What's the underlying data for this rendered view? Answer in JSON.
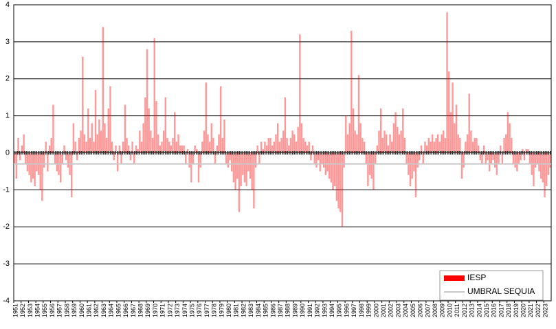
{
  "chart_data": {
    "type": "bar",
    "series": [
      {
        "name": "IESP",
        "color": "#ff0000",
        "x": [
          1951,
          1951.25,
          1951.5,
          1951.75,
          1952,
          1952.25,
          1952.5,
          1952.75,
          1953,
          1953.25,
          1953.5,
          1953.75,
          1954,
          1954.25,
          1954.5,
          1954.75,
          1955,
          1955.25,
          1955.5,
          1955.75,
          1956,
          1956.25,
          1956.5,
          1956.75,
          1957,
          1957.25,
          1957.5,
          1957.75,
          1958,
          1958.25,
          1958.5,
          1958.75,
          1959,
          1959.25,
          1959.5,
          1959.75,
          1960,
          1960.25,
          1960.5,
          1960.75,
          1961,
          1961.25,
          1961.5,
          1961.75,
          1962,
          1962.25,
          1962.5,
          1962.75,
          1963,
          1963.25,
          1963.5,
          1963.75,
          1964,
          1964.25,
          1964.5,
          1964.75,
          1965,
          1965.25,
          1965.5,
          1965.75,
          1966,
          1966.25,
          1966.5,
          1966.75,
          1967,
          1967.25,
          1967.5,
          1967.75,
          1968,
          1968.25,
          1968.5,
          1968.75,
          1969,
          1969.25,
          1969.5,
          1969.75,
          1970,
          1970.25,
          1970.5,
          1970.75,
          1971,
          1971.25,
          1971.5,
          1971.75,
          1972,
          1972.25,
          1972.5,
          1972.75,
          1973,
          1973.25,
          1973.5,
          1973.75,
          1974,
          1974.25,
          1974.5,
          1974.75,
          1975,
          1975.25,
          1975.5,
          1975.75,
          1976,
          1976.25,
          1976.5,
          1976.75,
          1977,
          1977.25,
          1977.5,
          1977.75,
          1978,
          1978.25,
          1978.5,
          1978.75,
          1979,
          1979.25,
          1979.5,
          1979.75,
          1980,
          1980.25,
          1980.5,
          1980.75,
          1981,
          1981.25,
          1981.5,
          1981.75,
          1982,
          1982.25,
          1982.5,
          1982.75,
          1983,
          1983.25,
          1983.5,
          1983.75,
          1984,
          1984.25,
          1984.5,
          1984.75,
          1985,
          1985.25,
          1985.5,
          1985.75,
          1986,
          1986.25,
          1986.5,
          1986.75,
          1987,
          1987.25,
          1987.5,
          1987.75,
          1988,
          1988.25,
          1988.5,
          1988.75,
          1989,
          1989.25,
          1989.5,
          1989.75,
          1990,
          1990.25,
          1990.5,
          1990.75,
          1991,
          1991.25,
          1991.5,
          1991.75,
          1992,
          1992.25,
          1992.5,
          1992.75,
          1993,
          1993.25,
          1993.5,
          1993.75,
          1994,
          1994.25,
          1994.5,
          1994.75,
          1995,
          1995.25,
          1995.5,
          1995.75,
          1996,
          1996.25,
          1996.5,
          1996.75,
          1997,
          1997.25,
          1997.5,
          1997.75,
          1998,
          1998.25,
          1998.5,
          1998.75,
          1999,
          1999.25,
          1999.5,
          1999.75,
          2000,
          2000.25,
          2000.5,
          2000.75,
          2001,
          2001.25,
          2001.5,
          2001.75,
          2002,
          2002.25,
          2002.5,
          2002.75,
          2003,
          2003.25,
          2003.5,
          2003.75,
          2004,
          2004.25,
          2004.5,
          2004.75,
          2005,
          2005.25,
          2005.5,
          2005.75,
          2006,
          2006.25,
          2006.5,
          2006.75,
          2007,
          2007.25,
          2007.5,
          2007.75,
          2008,
          2008.25,
          2008.5,
          2008.75,
          2009,
          2009.25,
          2009.5,
          2009.75,
          2010,
          2010.25,
          2010.5,
          2010.75,
          2011,
          2011.25,
          2011.5,
          2011.75,
          2012,
          2012.25,
          2012.5,
          2012.75,
          2013,
          2013.25,
          2013.5,
          2013.75,
          2014,
          2014.25,
          2014.5,
          2014.75,
          2015,
          2015.25,
          2015.5,
          2015.75,
          2016,
          2016.25,
          2016.5,
          2016.75,
          2017,
          2017.25,
          2017.5,
          2017.75,
          2018,
          2018.25,
          2018.5,
          2018.75,
          2019,
          2019.25,
          2019.5,
          2019.75,
          2020,
          2020.25,
          2020.5,
          2020.75,
          2021,
          2021.25,
          2021.5,
          2021.75,
          2022,
          2022.25,
          2022.5,
          2022.75,
          2023,
          2023.25,
          2023.5,
          2023.75
        ],
        "values": [
          -0.3,
          -0.7,
          0.4,
          -0.2,
          0.2,
          0.5,
          -0.3,
          -0.5,
          -0.6,
          -0.8,
          -0.7,
          -0.9,
          -0.5,
          -0.6,
          -1.0,
          -1.3,
          -0.4,
          0.3,
          -0.5,
          0.2,
          0.4,
          1.3,
          -0.3,
          -0.5,
          -0.6,
          -0.8,
          -0.3,
          0.2,
          -0.2,
          -0.4,
          -0.6,
          -1.2,
          0.8,
          0.3,
          -0.2,
          0.4,
          0.6,
          2.6,
          0.5,
          0.3,
          1.2,
          0.4,
          0.8,
          0.3,
          1.7,
          0.5,
          0.9,
          0.6,
          3.4,
          0.8,
          0.4,
          1.2,
          1.8,
          0.3,
          -0.2,
          0.2,
          -0.5,
          0.2,
          -0.3,
          0.3,
          1.3,
          0.4,
          0.2,
          -0.2,
          0.3,
          -0.3,
          0.2,
          0.1,
          0.6,
          0.3,
          0.8,
          1.5,
          2.8,
          1.2,
          0.6,
          0.4,
          3.1,
          1.4,
          0.5,
          0.2,
          0.3,
          0.6,
          1.5,
          0.4,
          0.3,
          0.2,
          0.4,
          1.1,
          0.3,
          0.5,
          0.2,
          0.2,
          0.2,
          -0.3,
          0.1,
          -0.4,
          -0.8,
          -0.3,
          0.2,
          0.1,
          -0.8,
          -0.4,
          0.3,
          0.6,
          1.9,
          0.5,
          0.3,
          0.8,
          0.4,
          -0.3,
          0.2,
          0.5,
          1.8,
          0.4,
          0.9,
          -0.3,
          -0.4,
          -0.2,
          -0.5,
          -0.8,
          -1.0,
          -0.7,
          -1.6,
          -0.9,
          -0.6,
          -0.8,
          -0.9,
          -0.5,
          -0.7,
          -1.0,
          -1.5,
          -0.4,
          0.2,
          -0.3,
          0.3,
          0.1,
          0.3,
          0.2,
          0.4,
          0.4,
          0.2,
          0.3,
          0.5,
          0.8,
          0.3,
          0.4,
          0.6,
          1.5,
          0.4,
          0.2,
          0.4,
          0.6,
          0.5,
          0.3,
          0.7,
          3.2,
          0.8,
          0.4,
          0.3,
          0.2,
          0.3,
          -0.2,
          0.2,
          -0.3,
          -0.4,
          -0.2,
          -0.5,
          -0.3,
          -0.4,
          -0.6,
          -0.5,
          -0.7,
          -0.8,
          -1.0,
          -0.9,
          -1.3,
          -1.5,
          -1.6,
          -2.0,
          -0.4,
          1.0,
          0.5,
          0.8,
          3.3,
          1.2,
          0.6,
          0.5,
          2.1,
          0.8,
          0.4,
          0.3,
          -0.3,
          -0.9,
          -0.6,
          -0.7,
          -1.0,
          -0.3,
          0.2,
          0.6,
          1.2,
          0.4,
          0.6,
          0.5,
          0.2,
          0.5,
          0.3,
          0.8,
          1.1,
          0.7,
          0.5,
          0.6,
          1.2,
          0.4,
          -0.3,
          -0.6,
          -0.9,
          -0.7,
          -0.5,
          -1.2,
          -0.4,
          -0.2,
          0.2,
          -0.3,
          0.3,
          0.2,
          0.4,
          0.3,
          0.5,
          0.3,
          0.4,
          0.5,
          0.3,
          0.5,
          0.6,
          0.4,
          3.8,
          2.2,
          1.1,
          1.9,
          0.8,
          1.3,
          0.5,
          0.4,
          -0.7,
          -0.4,
          0.3,
          0.5,
          1.6,
          0.6,
          0.3,
          0.4,
          0.4,
          0.2,
          -0.2,
          -0.3,
          0.2,
          -0.3,
          -0.2,
          -0.5,
          -0.3,
          -0.2,
          -0.4,
          -0.6,
          -0.3,
          0.2,
          -0.3,
          0.4,
          0.5,
          1.1,
          0.8,
          0.4,
          -0.3,
          -0.4,
          -0.5,
          -0.3,
          -0.2,
          0.1,
          -0.2,
          0.1,
          0.1,
          -0.3,
          -0.6,
          -0.9,
          -0.4,
          -0.3,
          -0.5,
          -0.7,
          -0.8,
          -1.2,
          -0.9,
          -0.6,
          -0.4
        ]
      },
      {
        "name": "UMBRAL SEQUIA",
        "color": "#c8c8c8",
        "value": -0.3
      }
    ],
    "xlim": [
      1951,
      2024
    ],
    "xticks": [
      1951,
      1952,
      1953,
      1954,
      1955,
      1956,
      1957,
      1958,
      1959,
      1960,
      1961,
      1962,
      1963,
      1964,
      1965,
      1966,
      1967,
      1968,
      1969,
      1970,
      1971,
      1972,
      1973,
      1974,
      1975,
      1976,
      1977,
      1978,
      1979,
      1980,
      1981,
      1982,
      1983,
      1984,
      1985,
      1986,
      1987,
      1988,
      1989,
      1990,
      1991,
      1992,
      1993,
      1994,
      1995,
      1996,
      1997,
      1998,
      1999,
      2000,
      2001,
      2002,
      2003,
      2004,
      2005,
      2006,
      2007,
      2008,
      2009,
      2010,
      2011,
      2012,
      2013,
      2014,
      2015,
      2016,
      2017,
      2018,
      2019,
      2020,
      2021,
      2022,
      2023
    ],
    "ylim": [
      -4,
      4
    ],
    "yticks": [
      -4,
      -3,
      -2,
      -1,
      0,
      1,
      2,
      3,
      4
    ],
    "grid": true,
    "legend": "bottom-right"
  }
}
